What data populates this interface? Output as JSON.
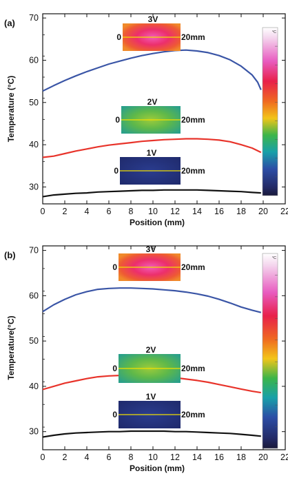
{
  "chart_data": [
    {
      "panel": "(a)",
      "type": "line",
      "xlabel": "Position (mm)",
      "ylabel": "Temperature (°C)",
      "xlim": [
        0,
        22
      ],
      "ylim": [
        26,
        71
      ],
      "xticks": [
        0,
        2,
        4,
        6,
        8,
        10,
        12,
        14,
        16,
        18,
        20,
        22
      ],
      "yticks": [
        30,
        40,
        50,
        60,
        70
      ],
      "grid": false,
      "series": [
        {
          "voltage": "3V",
          "color": "#3a55a6",
          "x": [
            0,
            1,
            2,
            3,
            4,
            5,
            6,
            7,
            8,
            9,
            10,
            11,
            12,
            13,
            14,
            15,
            16,
            17,
            18,
            19,
            19.5,
            19.8
          ],
          "y": [
            52.7,
            54.0,
            55.2,
            56.3,
            57.3,
            58.2,
            59.1,
            59.8,
            60.5,
            61.1,
            61.6,
            62.0,
            62.3,
            62.4,
            62.2,
            61.8,
            61.1,
            60.1,
            58.6,
            56.5,
            54.8,
            53.0
          ]
        },
        {
          "voltage": "2V",
          "color": "#e8332a",
          "x": [
            0,
            1,
            2,
            3,
            4,
            5,
            6,
            7,
            8,
            9,
            10,
            11,
            12,
            13,
            14,
            15,
            16,
            17,
            18,
            19,
            19.8
          ],
          "y": [
            37.0,
            37.3,
            37.9,
            38.5,
            39.0,
            39.5,
            39.9,
            40.2,
            40.5,
            40.8,
            41.0,
            41.2,
            41.3,
            41.4,
            41.4,
            41.3,
            41.1,
            40.7,
            40.0,
            39.2,
            38.2
          ]
        },
        {
          "voltage": "1V",
          "color": "#111111",
          "x": [
            0,
            1,
            2,
            3,
            4,
            5,
            6,
            7,
            8,
            9,
            10,
            11,
            12,
            13,
            14,
            15,
            16,
            17,
            18,
            19,
            19.8
          ],
          "y": [
            27.7,
            28.1,
            28.3,
            28.5,
            28.6,
            28.8,
            28.9,
            29.0,
            29.1,
            29.2,
            29.2,
            29.3,
            29.3,
            29.3,
            29.3,
            29.2,
            29.1,
            29.0,
            28.9,
            28.7,
            28.6
          ]
        }
      ],
      "insets": [
        {
          "voltage_label": "3V",
          "start_label": "0",
          "end_label": "20mm",
          "palette": "hot"
        },
        {
          "voltage_label": "2V",
          "start_label": "0",
          "end_label": "20mm",
          "palette": "warm"
        },
        {
          "voltage_label": "1V",
          "start_label": "0",
          "end_label": "20mm",
          "palette": "cold"
        }
      ],
      "colorbar": {
        "unit": "°C"
      }
    },
    {
      "panel": "(b)",
      "type": "line",
      "xlabel": "Position (mm)",
      "ylabel": "Temperature(°C)",
      "xlim": [
        0,
        22
      ],
      "ylim": [
        26,
        71
      ],
      "xticks": [
        0,
        2,
        4,
        6,
        8,
        10,
        12,
        14,
        16,
        18,
        20,
        22
      ],
      "yticks": [
        30,
        40,
        50,
        60,
        70
      ],
      "grid": false,
      "series": [
        {
          "voltage": "3V",
          "color": "#3a55a6",
          "x": [
            0,
            1,
            2,
            3,
            4,
            5,
            6,
            7,
            8,
            9,
            10,
            11,
            12,
            13,
            14,
            15,
            16,
            17,
            18,
            19,
            19.8
          ],
          "y": [
            56.5,
            58.0,
            59.2,
            60.2,
            60.9,
            61.4,
            61.6,
            61.7,
            61.7,
            61.6,
            61.5,
            61.3,
            61.1,
            60.8,
            60.4,
            59.9,
            59.2,
            58.4,
            57.5,
            56.8,
            56.3
          ]
        },
        {
          "voltage": "2V",
          "color": "#e8332a",
          "x": [
            0,
            1,
            2,
            3,
            4,
            5,
            6,
            7,
            8,
            9,
            10,
            11,
            12,
            13,
            14,
            15,
            16,
            17,
            18,
            19,
            19.8
          ],
          "y": [
            39.3,
            40.0,
            40.7,
            41.2,
            41.7,
            42.1,
            42.3,
            42.4,
            42.4,
            42.4,
            42.3,
            42.1,
            41.9,
            41.6,
            41.3,
            40.9,
            40.4,
            39.9,
            39.4,
            38.9,
            38.6
          ]
        },
        {
          "voltage": "1V",
          "color": "#111111",
          "x": [
            0,
            1,
            2,
            3,
            4,
            5,
            6,
            7,
            8,
            9,
            10,
            11,
            12,
            13,
            14,
            15,
            16,
            17,
            18,
            19,
            19.8
          ],
          "y": [
            28.8,
            29.2,
            29.5,
            29.7,
            29.8,
            29.9,
            30.0,
            30.0,
            30.1,
            30.1,
            30.1,
            30.1,
            30.0,
            30.0,
            29.9,
            29.8,
            29.7,
            29.6,
            29.4,
            29.2,
            29.0
          ]
        }
      ],
      "insets": [
        {
          "voltage_label": "3V",
          "start_label": "0",
          "end_label": "20mm",
          "palette": "hot"
        },
        {
          "voltage_label": "2V",
          "start_label": "0",
          "end_label": "20mm",
          "palette": "warm"
        },
        {
          "voltage_label": "1V",
          "start_label": "0",
          "end_label": "20mm",
          "palette": "cold"
        }
      ],
      "colorbar": {
        "unit": "°C"
      }
    }
  ]
}
